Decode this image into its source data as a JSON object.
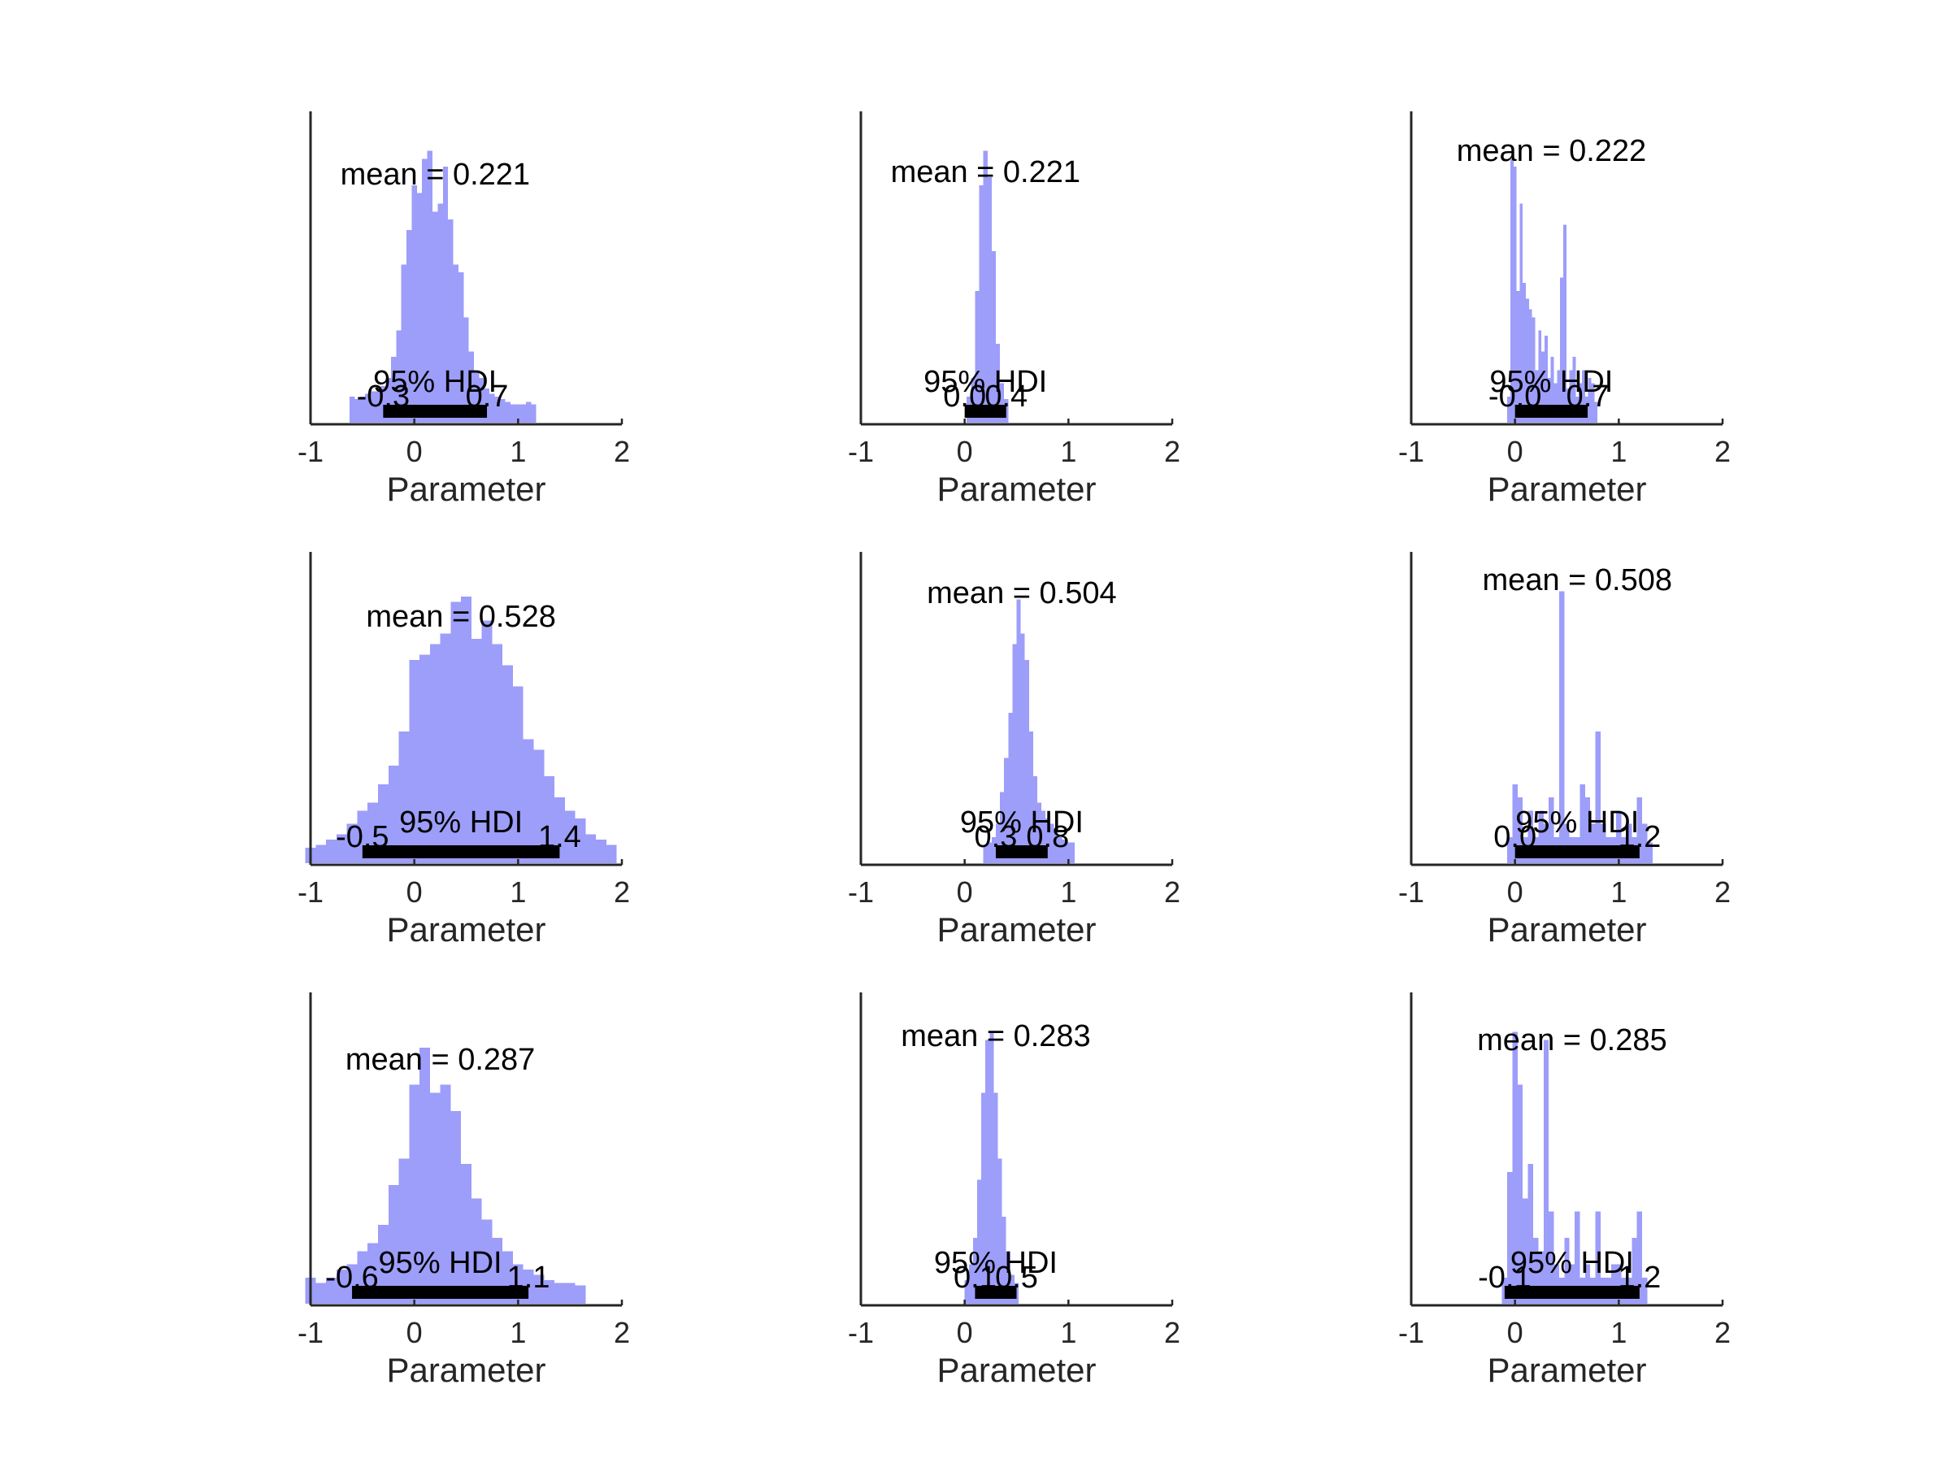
{
  "colors": {
    "histogram": "#9d9dfa",
    "axis": "#262626",
    "hdi_bar": "#000000"
  },
  "chart_data": [
    {
      "type": "bar",
      "panel": "row1-col1",
      "xlabel": "Parameter",
      "xlim": [
        -1,
        2
      ],
      "x_ticks": [
        "-1",
        "0",
        "1",
        "2"
      ],
      "mean_label": "mean = 0.221",
      "hdi_title": "95% HDI",
      "hdi": [
        -0.3,
        0.7
      ],
      "hdi_labels": [
        "-0.3",
        "0.7"
      ],
      "bins": [
        -0.6,
        -0.55,
        -0.5,
        -0.45,
        -0.4,
        -0.35,
        -0.3,
        -0.25,
        -0.2,
        -0.15,
        -0.1,
        -0.05,
        0,
        0.05,
        0.1,
        0.15,
        0.2,
        0.25,
        0.3,
        0.35,
        0.4,
        0.45,
        0.5,
        0.55,
        0.6,
        0.65,
        0.7,
        0.75,
        0.8,
        0.85,
        0.9,
        0.95,
        1,
        1.05,
        1.1,
        1.15
      ],
      "counts": [
        0.05,
        0.04,
        0.05,
        0.06,
        0.07,
        0.07,
        0.09,
        0.12,
        0.2,
        0.3,
        0.55,
        0.68,
        0.85,
        0.82,
        0.95,
        0.98,
        0.75,
        0.78,
        0.92,
        0.72,
        0.55,
        0.52,
        0.35,
        0.22,
        0.15,
        0.12,
        0.08,
        0.06,
        0.05,
        0.04,
        0.03,
        0.02,
        0.02,
        0.02,
        0.03,
        0.02
      ]
    },
    {
      "type": "bar",
      "panel": "row1-col2",
      "xlabel": "Parameter",
      "xlim": [
        -1,
        2
      ],
      "x_ticks": [
        "-1",
        "0",
        "1",
        "2"
      ],
      "mean_label": "mean = 0.221",
      "hdi_title": "95% HDI",
      "hdi": [
        0.0,
        0.4
      ],
      "hdi_labels": [
        "0.0",
        "0.4"
      ],
      "bins": [
        0.04,
        0.08,
        0.12,
        0.16,
        0.2,
        0.24,
        0.28,
        0.32,
        0.36,
        0.4
      ],
      "counts": [
        0.05,
        0.12,
        0.45,
        0.85,
        0.98,
        0.88,
        0.6,
        0.25,
        0.1,
        0.04
      ]
    },
    {
      "type": "bar",
      "panel": "row1-col3",
      "xlabel": "Parameter",
      "xlim": [
        -1,
        2
      ],
      "x_ticks": [
        "-1",
        "0",
        "1",
        "2"
      ],
      "mean_label": "mean = 0.222",
      "hdi_title": "95% HDI",
      "hdi": [
        0.0,
        0.7
      ],
      "hdi_labels": [
        "-0.0",
        "0.7"
      ],
      "bins": [
        -0.06,
        -0.03,
        0,
        0.03,
        0.06,
        0.09,
        0.12,
        0.15,
        0.18,
        0.21,
        0.24,
        0.27,
        0.3,
        0.33,
        0.36,
        0.39,
        0.42,
        0.45,
        0.48,
        0.51,
        0.54,
        0.57,
        0.6,
        0.63,
        0.66,
        0.69,
        0.72,
        0.75,
        0.78
      ],
      "counts": [
        0.05,
        0.95,
        0.92,
        0.45,
        0.78,
        0.48,
        0.42,
        0.38,
        0.35,
        0.15,
        0.3,
        0.22,
        0.28,
        0.12,
        0.2,
        0.1,
        0.15,
        0.5,
        0.7,
        0.08,
        0.15,
        0.2,
        0.05,
        0.1,
        0.15,
        0.05,
        0.12,
        0.1,
        0.03
      ]
    },
    {
      "type": "bar",
      "panel": "row2-col1",
      "xlabel": "Parameter",
      "xlim": [
        -1,
        2
      ],
      "x_ticks": [
        "-1",
        "0",
        "1",
        "2"
      ],
      "mean_label": "mean = 0.528",
      "hdi_title": "95% HDI",
      "hdi": [
        -0.5,
        1.4
      ],
      "hdi_labels": [
        "-0.5",
        "1.4"
      ],
      "bins": [
        -1,
        -0.9,
        -0.8,
        -0.7,
        -0.6,
        -0.5,
        -0.4,
        -0.3,
        -0.2,
        -0.1,
        0,
        0.1,
        0.2,
        0.3,
        0.4,
        0.5,
        0.6,
        0.7,
        0.8,
        0.9,
        1,
        1.1,
        1.2,
        1.3,
        1.4,
        1.5,
        1.6,
        1.7,
        1.8,
        1.9
      ],
      "counts": [
        0.01,
        0.02,
        0.04,
        0.06,
        0.1,
        0.15,
        0.18,
        0.25,
        0.32,
        0.45,
        0.72,
        0.74,
        0.78,
        0.82,
        0.94,
        0.96,
        0.8,
        0.87,
        0.78,
        0.7,
        0.62,
        0.42,
        0.38,
        0.28,
        0.2,
        0.15,
        0.12,
        0.06,
        0.04,
        0.02
      ]
    },
    {
      "type": "bar",
      "panel": "row2-col2",
      "xlabel": "Parameter",
      "xlim": [
        -1,
        2
      ],
      "x_ticks": [
        "-1",
        "0",
        "1",
        "2"
      ],
      "mean_label": "mean = 0.504",
      "hdi_title": "95% HDI",
      "hdi": [
        0.3,
        0.8
      ],
      "hdi_labels": [
        "0.3",
        "0.8"
      ],
      "bins": [
        0.2,
        0.24,
        0.28,
        0.32,
        0.36,
        0.4,
        0.44,
        0.48,
        0.52,
        0.56,
        0.6,
        0.64,
        0.68,
        0.72,
        0.76,
        0.8,
        0.84,
        0.88,
        0.92,
        0.96,
        1.0,
        1.04
      ],
      "counts": [
        0.02,
        0.03,
        0.05,
        0.1,
        0.22,
        0.35,
        0.52,
        0.78,
        0.95,
        0.82,
        0.72,
        0.45,
        0.28,
        0.18,
        0.15,
        0.12,
        0.1,
        0.08,
        0.05,
        0.04,
        0.03,
        0.03
      ]
    },
    {
      "type": "bar",
      "panel": "row2-col3",
      "xlabel": "Parameter",
      "xlim": [
        -1,
        2
      ],
      "x_ticks": [
        "-1",
        "0",
        "1",
        "2"
      ],
      "mean_label": "mean = 0.508",
      "hdi_title": "95% HDI",
      "hdi": [
        0.0,
        1.2
      ],
      "hdi_labels": [
        "0.0",
        "1.2"
      ],
      "bins": [
        -0.05,
        0,
        0.05,
        0.1,
        0.15,
        0.2,
        0.25,
        0.3,
        0.35,
        0.4,
        0.45,
        0.5,
        0.55,
        0.6,
        0.65,
        0.7,
        0.75,
        0.8,
        0.85,
        0.9,
        0.95,
        1,
        1.05,
        1.1,
        1.15,
        1.2,
        1.25,
        1.3
      ],
      "counts": [
        0.05,
        0.25,
        0.2,
        0.05,
        0.15,
        0.05,
        0.15,
        0.1,
        0.2,
        0.05,
        0.98,
        0.1,
        0.05,
        0.05,
        0.25,
        0.2,
        0.1,
        0.45,
        0.1,
        0.05,
        0.05,
        0.15,
        0.05,
        0.1,
        0.05,
        0.2,
        0.1,
        0.03
      ]
    },
    {
      "type": "bar",
      "panel": "row3-col1",
      "xlabel": "Parameter",
      "xlim": [
        -1,
        2
      ],
      "x_ticks": [
        "-1",
        "0",
        "1",
        "2"
      ],
      "mean_label": "mean = 0.287",
      "hdi_title": "95% HDI",
      "hdi": [
        -0.6,
        1.1
      ],
      "hdi_labels": [
        "-0.6",
        "1.1"
      ],
      "bins": [
        -1,
        -0.9,
        -0.8,
        -0.7,
        -0.6,
        -0.5,
        -0.4,
        -0.3,
        -0.2,
        -0.1,
        0,
        0.1,
        0.2,
        0.3,
        0.4,
        0.5,
        0.6,
        0.7,
        0.8,
        0.9,
        1,
        1.1,
        1.2,
        1.3,
        1.4,
        1.5,
        1.6
      ],
      "counts": [
        0.05,
        0.03,
        0.05,
        0.08,
        0.1,
        0.15,
        0.18,
        0.25,
        0.4,
        0.5,
        0.78,
        0.92,
        0.75,
        0.78,
        0.68,
        0.48,
        0.35,
        0.27,
        0.2,
        0.15,
        0.1,
        0.08,
        0.06,
        0.04,
        0.03,
        0.03,
        0.02
      ]
    },
    {
      "type": "bar",
      "panel": "row3-col2",
      "xlabel": "Parameter",
      "xlim": [
        -1,
        2
      ],
      "x_ticks": [
        "-1",
        "0",
        "1",
        "2"
      ],
      "mean_label": "mean = 0.283",
      "hdi_title": "95% HDI",
      "hdi": [
        0.1,
        0.5
      ],
      "hdi_labels": [
        "0.1",
        "0.5"
      ],
      "bins": [
        0.02,
        0.06,
        0.1,
        0.14,
        0.18,
        0.22,
        0.26,
        0.3,
        0.34,
        0.38,
        0.42,
        0.46,
        0.5
      ],
      "counts": [
        0.04,
        0.1,
        0.2,
        0.42,
        0.75,
        0.95,
        0.98,
        0.75,
        0.5,
        0.28,
        0.15,
        0.06,
        0.03
      ]
    },
    {
      "type": "bar",
      "panel": "row3-col3",
      "xlabel": "Parameter",
      "xlim": [
        -1,
        2
      ],
      "x_ticks": [
        "-1",
        "0",
        "1",
        "2"
      ],
      "mean_label": "mean = 0.285",
      "hdi_title": "95% HDI",
      "hdi": [
        -0.1,
        1.2
      ],
      "hdi_labels": [
        "-0.1",
        "1.2"
      ],
      "bins": [
        -0.1,
        -0.05,
        0,
        0.05,
        0.1,
        0.15,
        0.2,
        0.25,
        0.3,
        0.35,
        0.4,
        0.45,
        0.5,
        0.55,
        0.6,
        0.65,
        0.7,
        0.75,
        0.8,
        0.85,
        0.9,
        0.95,
        1,
        1.05,
        1.1,
        1.15,
        1.2,
        1.25
      ],
      "counts": [
        0.05,
        0.45,
        0.98,
        0.78,
        0.35,
        0.48,
        0.2,
        0.15,
        0.95,
        0.3,
        0.1,
        0.05,
        0.2,
        0.1,
        0.3,
        0.05,
        0.1,
        0.05,
        0.3,
        0.05,
        0.05,
        0.1,
        0.1,
        0.05,
        0.05,
        0.2,
        0.3,
        0.05
      ]
    }
  ]
}
